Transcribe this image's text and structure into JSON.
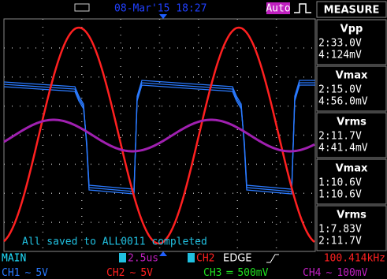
{
  "header": {
    "datetime": "08-Mar'15 18:27",
    "mode": "Auto",
    "panel_title": "MEASURE"
  },
  "measurements": [
    {
      "title": "Vpp",
      "lines": [
        "2:33.0V",
        "4:124mV"
      ]
    },
    {
      "title": "Vmax",
      "lines": [
        "2:15.0V",
        "4:56.0mV"
      ]
    },
    {
      "title": "Vrms",
      "lines": [
        "2:11.7V",
        "4:41.4mV"
      ]
    },
    {
      "title": "Vmax",
      "lines": [
        "1:10.6V",
        "1:10.6V"
      ]
    },
    {
      "title": "Vrms",
      "lines": [
        "1:7.83V",
        "2:11.7V"
      ]
    }
  ],
  "message": "All saved to ALL0011 completed",
  "status": {
    "timebase_label": "MAIN",
    "timebase": "2.5us",
    "trigger_source": "CH2",
    "trigger_type": "EDGE",
    "frequency": "100.414kHz"
  },
  "channels": [
    {
      "name": "CH1",
      "coupling": "∼",
      "scale": "5V"
    },
    {
      "name": "CH2",
      "coupling": "∼",
      "scale": "5V"
    },
    {
      "name": "CH3",
      "coupling": "═",
      "scale": "500mV"
    },
    {
      "name": "CH4",
      "coupling": "∼",
      "scale": "100mV"
    }
  ]
}
